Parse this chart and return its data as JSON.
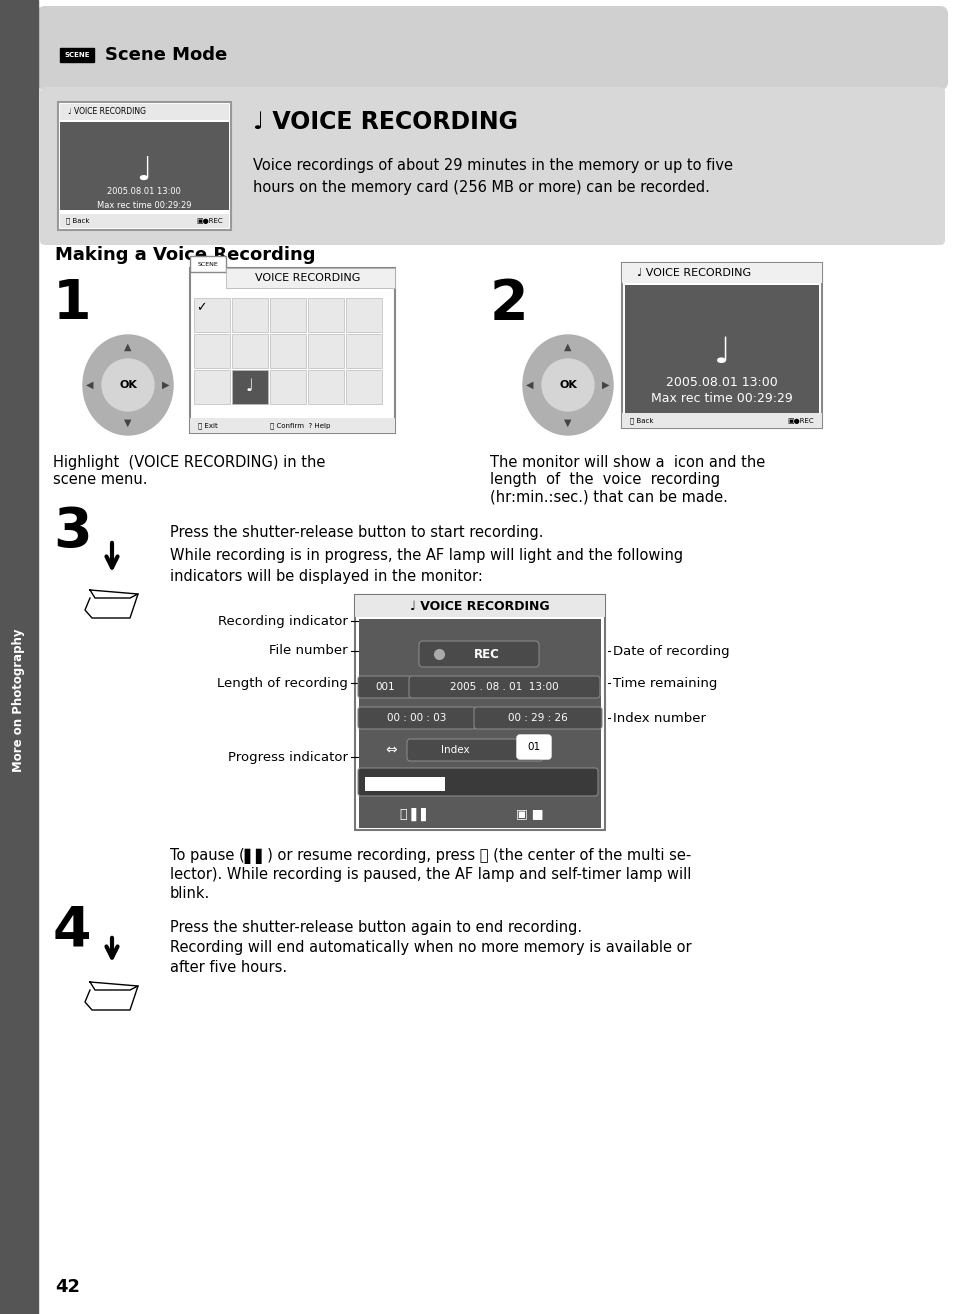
{
  "page_bg": "#ffffff",
  "sidebar_color": "#555555",
  "header_bg": "#cccccc",
  "header_text": "Scene Mode",
  "intro_bg": "#d8d8d8",
  "voice_rec_desc": "Voice recordings of about 29 minutes in the memory or up to five\nhours on the memory card (256 MB or more) can be recorded.",
  "making_title": "Making a Voice Recording",
  "step1_caption_line1": "Highlight  (VOICE RECORDING) in the",
  "step1_caption_line2": "scene menu.",
  "step2_caption_line1": "The monitor will show a  icon and the",
  "step2_caption_line2": "length  of  the  voice  recording",
  "step2_caption_line3": "(hr:min.:sec.) that can be made.",
  "step3_text1": "Press the shutter-release button to start recording.",
  "step3_text2": "While recording is in progress, the AF lamp will light and the following",
  "step3_text3": "indicators will be displayed in the monitor:",
  "label_recording": "Recording indicator",
  "label_file": "File number",
  "label_length": "Length of recording",
  "label_progress": "Progress indicator",
  "label_date": "Date of recording",
  "label_time": "Time remaining",
  "label_index": "Index number",
  "step3_pause1": "To pause (▌▌) or resume recording, press ⒪ (the center of the multi se-",
  "step3_pause2": "lector). While recording is paused, the AF lamp and self-timer lamp will",
  "step3_pause3": "blink.",
  "step4_text1": "Press the shutter-release button again to end recording.",
  "step4_text2": "Recording will end automatically when no more memory is available or",
  "step4_text3": "after five hours.",
  "page_number": "42",
  "sidebar_label": "More on Photography",
  "dark_screen": "#5a5a5a",
  "screen_border": "#888888",
  "pill_bg": "#666666"
}
